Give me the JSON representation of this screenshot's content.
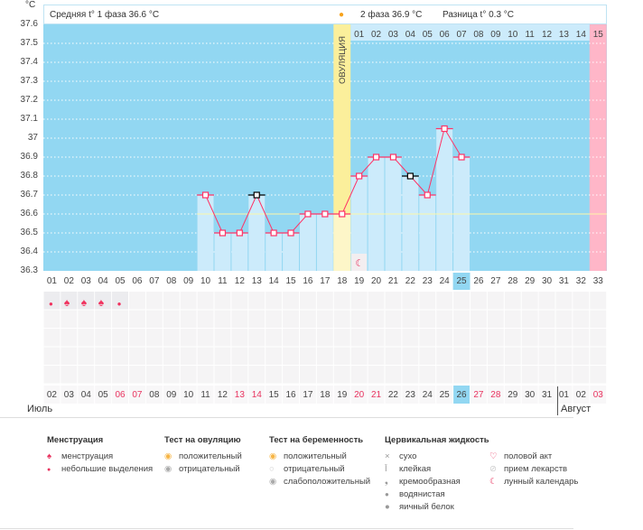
{
  "header": {
    "unit": "°C",
    "phase1": "Средняя t° 1 фаза 36.6 °C",
    "phase2": "2 фаза 36.9 °C",
    "diff": "Разница t° 0.3 °C",
    "ovulation": "ОВУЛЯЦИЯ"
  },
  "y_ticks": [
    "37.6",
    "37.5",
    "37.4",
    "37.3",
    "37.2",
    "37.1",
    "37",
    "36.9",
    "36.8",
    "36.7",
    "36.6",
    "36.5",
    "36.4",
    "36.3"
  ],
  "phase2_days": [
    "01",
    "02",
    "03",
    "04",
    "05",
    "06",
    "07",
    "08",
    "09",
    "10",
    "11",
    "12",
    "13",
    "14",
    "15"
  ],
  "cycle_days": [
    "01",
    "02",
    "03",
    "04",
    "05",
    "06",
    "07",
    "08",
    "09",
    "10",
    "11",
    "12",
    "13",
    "14",
    "15",
    "16",
    "17",
    "18",
    "19",
    "20",
    "21",
    "22",
    "23",
    "24",
    "25",
    "26",
    "27",
    "28",
    "29",
    "30",
    "31",
    "32",
    "33"
  ],
  "current_cycle_day": "25",
  "dates": [
    "02",
    "03",
    "04",
    "05",
    "06",
    "07",
    "08",
    "09",
    "10",
    "11",
    "12",
    "13",
    "14",
    "15",
    "16",
    "17",
    "18",
    "19",
    "20",
    "21",
    "22",
    "23",
    "24",
    "25",
    "26",
    "27",
    "28",
    "29",
    "30",
    "31",
    "01",
    "02",
    "03"
  ],
  "weekend_dates_idx": [
    4,
    5,
    11,
    12,
    18,
    19,
    25,
    26,
    32
  ],
  "current_date": "26",
  "months": {
    "july": "Июль",
    "august": "Август"
  },
  "chart_data": {
    "type": "line",
    "ylim": [
      36.3,
      37.6
    ],
    "ovulation_day": 18,
    "cover_line": 36.6,
    "points": [
      {
        "day": 10,
        "t": 36.7
      },
      {
        "day": 11,
        "t": 36.5
      },
      {
        "day": 12,
        "t": 36.5
      },
      {
        "day": 13,
        "t": 36.7,
        "marked": true
      },
      {
        "day": 14,
        "t": 36.5
      },
      {
        "day": 15,
        "t": 36.5
      },
      {
        "day": 16,
        "t": 36.6
      },
      {
        "day": 17,
        "t": 36.6
      },
      {
        "day": 18,
        "t": 36.6
      },
      {
        "day": 19,
        "t": 36.8
      },
      {
        "day": 20,
        "t": 36.9
      },
      {
        "day": 21,
        "t": 36.9
      },
      {
        "day": 22,
        "t": 36.8,
        "marked": true
      },
      {
        "day": 23,
        "t": 36.7
      },
      {
        "day": 24,
        "t": 37.05
      },
      {
        "day": 25,
        "t": 36.9
      }
    ]
  },
  "menstruation_days": [
    {
      "day": 1,
      "type": "light"
    },
    {
      "day": 2,
      "type": "heavy"
    },
    {
      "day": 3,
      "type": "heavy"
    },
    {
      "day": 4,
      "type": "heavy"
    },
    {
      "day": 5,
      "type": "light"
    }
  ],
  "moon_day": 19,
  "legend": {
    "menstruation": {
      "title": "Менструация",
      "items": [
        "менструация",
        "небольшие выделения"
      ]
    },
    "ovulation_test": {
      "title": "Тест на овуляцию",
      "items": [
        "положительный",
        "отрицательный"
      ]
    },
    "pregnancy_test": {
      "title": "Тест на беременность",
      "items": [
        "положительный",
        "отрицательный",
        "слабоположительный"
      ]
    },
    "cervical": {
      "title": "Цервикальная жидкость",
      "items": [
        "сухо",
        "клейкая",
        "кремообразная",
        "водянистая",
        "яичный белок"
      ]
    },
    "other": {
      "items": [
        "половой акт",
        "прием лекарств",
        "лунный календарь"
      ]
    }
  },
  "colors": {
    "sky": "#92d7f2",
    "bar": "#ccebfb",
    "ovulation": "#fbef9b",
    "pink": "#ffb6c8",
    "line": "#ff3366"
  }
}
